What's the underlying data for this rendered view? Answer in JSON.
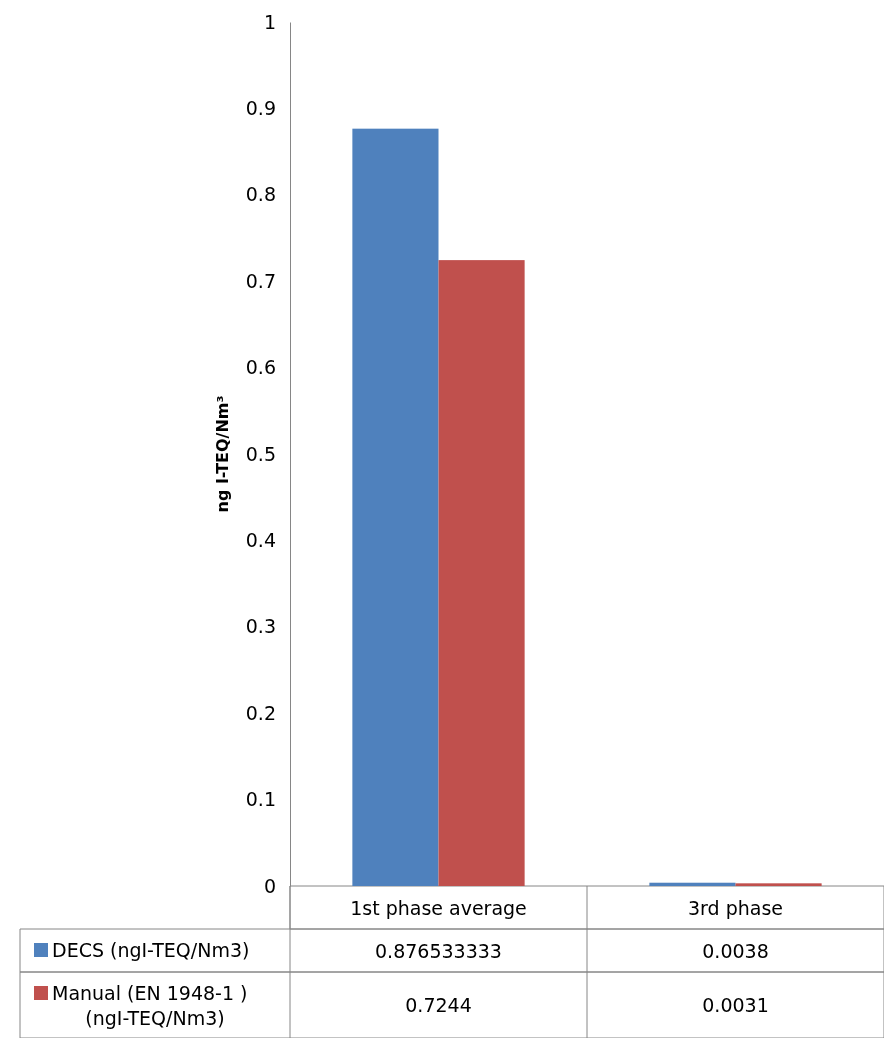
{
  "chart_data": {
    "type": "bar",
    "ylabel": "ng I-TEQ/Nm³",
    "categories": [
      "1st phase average",
      "3rd phase"
    ],
    "series": [
      {
        "name": "DECS (ngI-TEQ/Nm3)",
        "color": "#4f81bd",
        "values": [
          0.876533333,
          0.0038
        ]
      },
      {
        "name": "Manual (EN 1948-1 ) (ngI-TEQ/Nm3)",
        "color": "#c0504d",
        "values": [
          0.7244,
          0.0031
        ]
      }
    ],
    "ylim": [
      0,
      1
    ],
    "yticks": [
      0,
      0.1,
      0.2,
      0.3,
      0.4,
      0.5,
      0.6,
      0.7,
      0.8,
      0.9,
      1
    ],
    "grid": false,
    "legend": "bottom",
    "data_labels": true
  }
}
